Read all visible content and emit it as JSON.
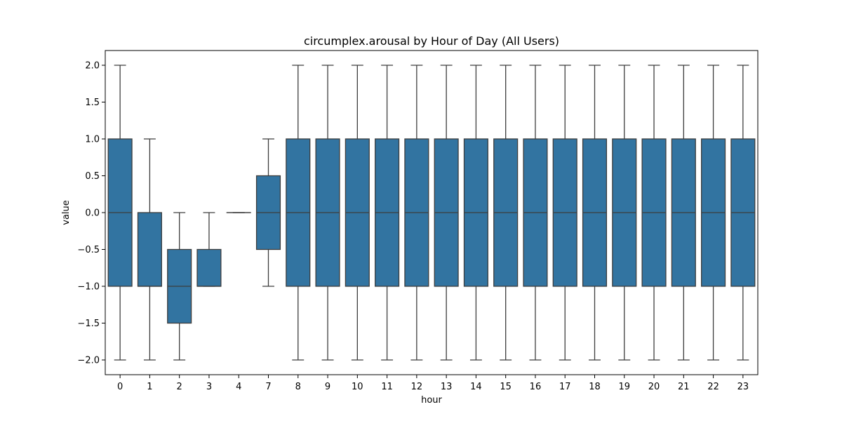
{
  "chart_data": {
    "type": "box",
    "title": "circumplex.arousal by Hour of Day (All Users)",
    "xlabel": "hour",
    "ylabel": "value",
    "ylim": [
      -2.2,
      2.2
    ],
    "yticks": [
      "2.0",
      "1.5",
      "1.0",
      "0.5",
      "0.0",
      "−0.5",
      "−1.0",
      "−1.5",
      "−2.0"
    ],
    "ytick_values": [
      2.0,
      1.5,
      1.0,
      0.5,
      0.0,
      -0.5,
      -1.0,
      -1.5,
      -2.0
    ],
    "categories": [
      "0",
      "1",
      "2",
      "3",
      "4",
      "7",
      "8",
      "9",
      "10",
      "11",
      "12",
      "13",
      "14",
      "15",
      "16",
      "17",
      "18",
      "19",
      "20",
      "21",
      "22",
      "23"
    ],
    "boxes": [
      {
        "hour": "0",
        "whisker_low": -2,
        "q1": -1,
        "median": 0,
        "q3": 1,
        "whisker_high": 2
      },
      {
        "hour": "1",
        "whisker_low": -2,
        "q1": -1,
        "median": -1,
        "q3": 0,
        "whisker_high": 1
      },
      {
        "hour": "2",
        "whisker_low": -2,
        "q1": -1.5,
        "median": -1,
        "q3": -0.5,
        "whisker_high": 0
      },
      {
        "hour": "3",
        "whisker_low": -1,
        "q1": -1,
        "median": -1,
        "q3": -0.5,
        "whisker_high": 0
      },
      {
        "hour": "4",
        "whisker_low": 0,
        "q1": 0,
        "median": 0,
        "q3": 0,
        "whisker_high": 0
      },
      {
        "hour": "7",
        "whisker_low": -1,
        "q1": -0.5,
        "median": 0,
        "q3": 0.5,
        "whisker_high": 1
      },
      {
        "hour": "8",
        "whisker_low": -2,
        "q1": -1,
        "median": 0,
        "q3": 1,
        "whisker_high": 2
      },
      {
        "hour": "9",
        "whisker_low": -2,
        "q1": -1,
        "median": 0,
        "q3": 1,
        "whisker_high": 2
      },
      {
        "hour": "10",
        "whisker_low": -2,
        "q1": -1,
        "median": 0,
        "q3": 1,
        "whisker_high": 2
      },
      {
        "hour": "11",
        "whisker_low": -2,
        "q1": -1,
        "median": 0,
        "q3": 1,
        "whisker_high": 2
      },
      {
        "hour": "12",
        "whisker_low": -2,
        "q1": -1,
        "median": 0,
        "q3": 1,
        "whisker_high": 2
      },
      {
        "hour": "13",
        "whisker_low": -2,
        "q1": -1,
        "median": 0,
        "q3": 1,
        "whisker_high": 2
      },
      {
        "hour": "14",
        "whisker_low": -2,
        "q1": -1,
        "median": 0,
        "q3": 1,
        "whisker_high": 2
      },
      {
        "hour": "15",
        "whisker_low": -2,
        "q1": -1,
        "median": 0,
        "q3": 1,
        "whisker_high": 2
      },
      {
        "hour": "16",
        "whisker_low": -2,
        "q1": -1,
        "median": 0,
        "q3": 1,
        "whisker_high": 2
      },
      {
        "hour": "17",
        "whisker_low": -2,
        "q1": -1,
        "median": 0,
        "q3": 1,
        "whisker_high": 2
      },
      {
        "hour": "18",
        "whisker_low": -2,
        "q1": -1,
        "median": 0,
        "q3": 1,
        "whisker_high": 2
      },
      {
        "hour": "19",
        "whisker_low": -2,
        "q1": -1,
        "median": 0,
        "q3": 1,
        "whisker_high": 2
      },
      {
        "hour": "20",
        "whisker_low": -2,
        "q1": -1,
        "median": 0,
        "q3": 1,
        "whisker_high": 2
      },
      {
        "hour": "21",
        "whisker_low": -2,
        "q1": -1,
        "median": 0,
        "q3": 1,
        "whisker_high": 2
      },
      {
        "hour": "22",
        "whisker_low": -2,
        "q1": -1,
        "median": 0,
        "q3": 1,
        "whisker_high": 2
      },
      {
        "hour": "23",
        "whisker_low": -2,
        "q1": -1,
        "median": 0,
        "q3": 1,
        "whisker_high": 2
      }
    ],
    "grid": false,
    "colors": {
      "box_fill": "#3274a1",
      "line": "#3d3d3d",
      "axis": "#000000"
    }
  }
}
